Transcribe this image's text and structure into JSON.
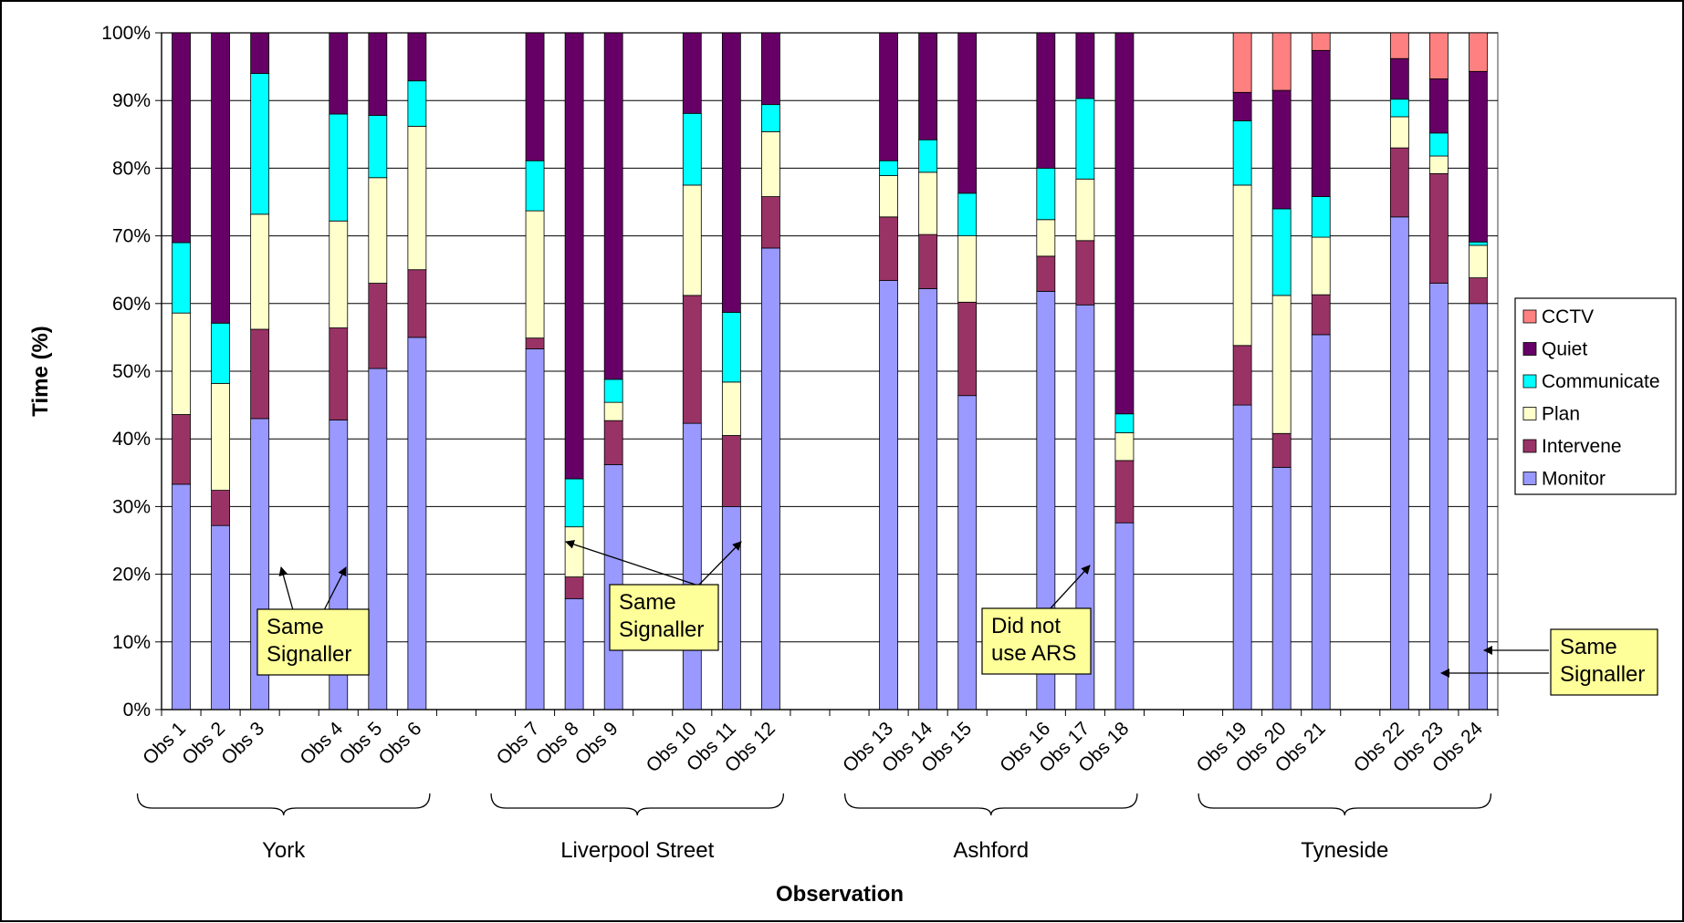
{
  "chart_data": {
    "type": "bar",
    "stacked": true,
    "percent": true,
    "xlabel": "Observation",
    "ylabel": "Time (%)",
    "ylim": [
      0,
      100
    ],
    "yticks": [
      "0%",
      "10%",
      "20%",
      "30%",
      "40%",
      "50%",
      "60%",
      "70%",
      "80%",
      "90%",
      "100%"
    ],
    "grid": true,
    "legend_position": "right",
    "series": [
      {
        "name": "Monitor",
        "color": "#9999ff"
      },
      {
        "name": "Intervene",
        "color": "#993366"
      },
      {
        "name": "Plan",
        "color": "#ffffcc"
      },
      {
        "name": "Communicate",
        "color": "#00ffff"
      },
      {
        "name": "Quiet",
        "color": "#660066"
      },
      {
        "name": "CCTV",
        "color": "#ff8080"
      }
    ],
    "legend_order": [
      "CCTV",
      "Quiet",
      "Communicate",
      "Plan",
      "Intervene",
      "Monitor"
    ],
    "categories": [
      {
        "label": "Obs 1",
        "values": [
          33.3,
          10.3,
          15.0,
          10.4,
          31.0,
          0
        ]
      },
      {
        "label": "Obs 2",
        "values": [
          27.2,
          5.2,
          15.8,
          8.9,
          42.9,
          0
        ]
      },
      {
        "label": "Obs 3",
        "values": [
          43.0,
          13.2,
          17.0,
          20.8,
          6.0,
          0
        ]
      },
      {
        "label": "",
        "values": null
      },
      {
        "label": "Obs 4",
        "values": [
          42.8,
          13.6,
          15.8,
          15.8,
          12.0,
          0
        ]
      },
      {
        "label": "Obs 5",
        "values": [
          50.4,
          12.6,
          15.6,
          9.2,
          12.2,
          0
        ]
      },
      {
        "label": "Obs 6",
        "values": [
          55.0,
          10.0,
          21.2,
          6.7,
          7.1,
          0
        ]
      },
      {
        "label": "",
        "values": null
      },
      {
        "label": "",
        "values": null
      },
      {
        "label": "Obs 7",
        "values": [
          53.3,
          1.6,
          18.8,
          7.4,
          18.9,
          0
        ]
      },
      {
        "label": "Obs 8",
        "values": [
          16.4,
          3.2,
          7.4,
          7.1,
          65.9,
          0
        ]
      },
      {
        "label": "Obs 9",
        "values": [
          36.2,
          6.5,
          2.7,
          3.4,
          51.2,
          0
        ]
      },
      {
        "label": "",
        "values": null
      },
      {
        "label": "Obs 10",
        "values": [
          42.3,
          18.9,
          16.3,
          10.6,
          11.9,
          0
        ]
      },
      {
        "label": "Obs 11",
        "values": [
          30.0,
          10.5,
          7.9,
          10.3,
          41.3,
          0
        ]
      },
      {
        "label": "Obs 12",
        "values": [
          68.2,
          7.6,
          9.6,
          4.0,
          10.6,
          0
        ]
      },
      {
        "label": "",
        "values": null
      },
      {
        "label": "",
        "values": null
      },
      {
        "label": "Obs 13",
        "values": [
          63.4,
          9.4,
          6.1,
          2.2,
          18.9,
          0
        ]
      },
      {
        "label": "Obs 14",
        "values": [
          62.2,
          8.0,
          9.2,
          4.8,
          15.8,
          0
        ]
      },
      {
        "label": "Obs 15",
        "values": [
          46.4,
          13.8,
          9.8,
          6.3,
          23.7,
          0
        ]
      },
      {
        "label": "",
        "values": null
      },
      {
        "label": "Obs 16",
        "values": [
          61.8,
          5.2,
          5.4,
          7.6,
          20.0,
          0
        ]
      },
      {
        "label": "Obs 17",
        "values": [
          59.8,
          9.5,
          9.1,
          11.9,
          9.7,
          0
        ]
      },
      {
        "label": "Obs 18",
        "values": [
          27.6,
          9.2,
          4.1,
          2.8,
          56.3,
          0
        ]
      },
      {
        "label": "",
        "values": null
      },
      {
        "label": "",
        "values": null
      },
      {
        "label": "Obs 19",
        "values": [
          45.0,
          8.8,
          23.7,
          9.5,
          4.2,
          8.8
        ]
      },
      {
        "label": "Obs 20",
        "values": [
          35.8,
          5.0,
          20.4,
          12.8,
          17.5,
          8.5
        ]
      },
      {
        "label": "Obs 21",
        "values": [
          55.4,
          5.9,
          8.5,
          6.0,
          21.6,
          2.6
        ]
      },
      {
        "label": "",
        "values": null
      },
      {
        "label": "Obs 22",
        "values": [
          72.8,
          10.2,
          4.6,
          2.6,
          6.0,
          3.8
        ]
      },
      {
        "label": "Obs 23",
        "values": [
          63.0,
          16.2,
          2.6,
          3.4,
          8.0,
          6.8
        ]
      },
      {
        "label": "Obs 24",
        "values": [
          60.0,
          3.8,
          4.8,
          0.5,
          25.2,
          5.7
        ]
      }
    ],
    "groups": [
      {
        "label": "York",
        "from": 0,
        "to": 6
      },
      {
        "label": "Liverpool Street",
        "from": 9,
        "to": 15
      },
      {
        "label": "Ashford",
        "from": 18,
        "to": 24
      },
      {
        "label": "Tyneside",
        "from": 27,
        "to": 33
      }
    ],
    "annotations": [
      {
        "lines": [
          "Same",
          "Signaller"
        ],
        "targets": [
          2,
          4
        ]
      },
      {
        "lines": [
          "Same",
          "Signaller"
        ],
        "targets": [
          10,
          14
        ]
      },
      {
        "lines": [
          "Did not",
          "use ARS"
        ],
        "targets": [
          23
        ]
      },
      {
        "lines": [
          "Same",
          "Signaller"
        ],
        "targets": [
          32,
          33
        ]
      }
    ]
  }
}
